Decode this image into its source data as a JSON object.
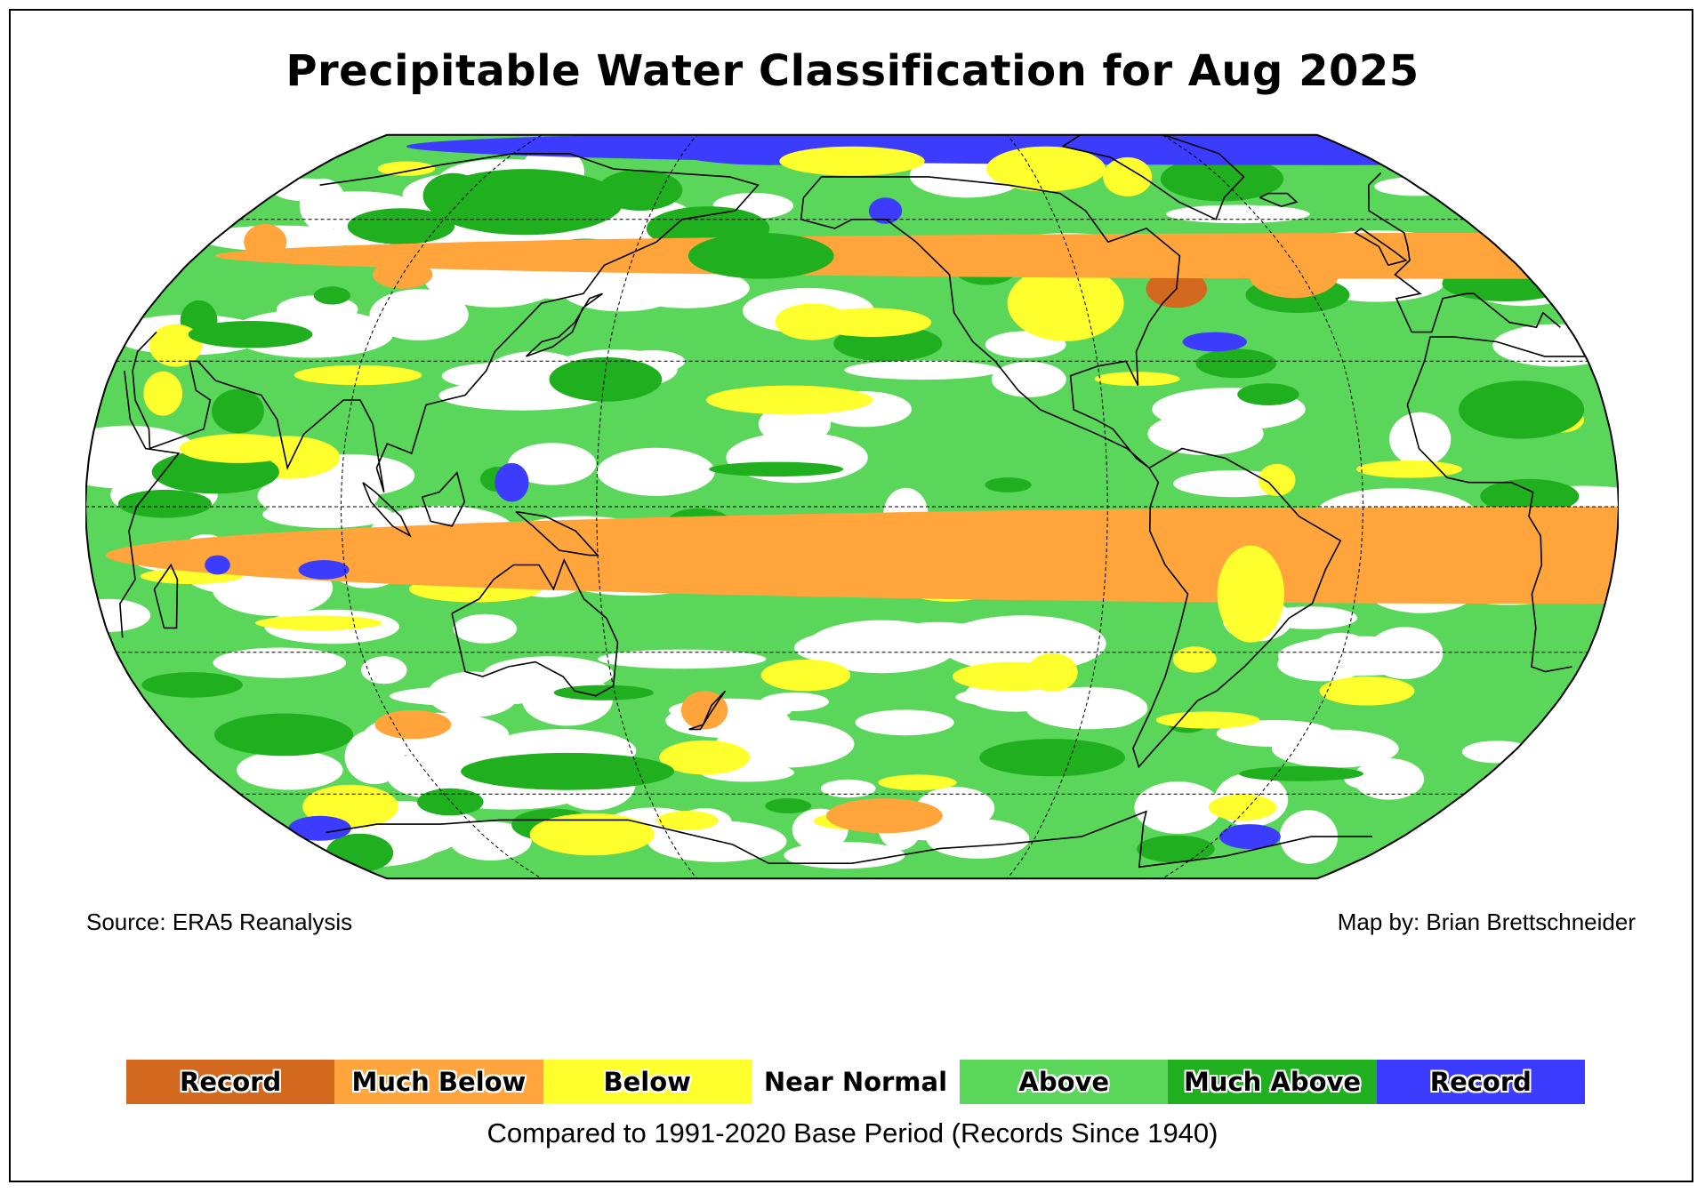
{
  "title": "Precipitable Water Classification for Aug 2025",
  "source_label": "Source: ERA5 Reanalysis",
  "credit_label": "Map by: Brian Brettschneider",
  "base_period_label": "Compared to 1991-2020 Base Period   (Records Since 1940)",
  "colors": {
    "record_low": "#d2691e",
    "much_below": "#ffa53b",
    "below": "#ffff2e",
    "near_normal": "#ffffff",
    "above": "#5ad65a",
    "much_above": "#1faf1f",
    "record_high": "#3c3cff",
    "land_outline": "#000000"
  },
  "legend": [
    {
      "label": "Record",
      "color": "#d2691e"
    },
    {
      "label": "Much Below",
      "color": "#ffa53b"
    },
    {
      "label": "Below",
      "color": "#ffff2e"
    },
    {
      "label": "Near Normal",
      "color": "#ffffff"
    },
    {
      "label": "Above",
      "color": "#5ad65a"
    },
    {
      "label": "Much Above",
      "color": "#1faf1f"
    },
    {
      "label": "Record",
      "color": "#3c3cff"
    }
  ],
  "map": {
    "projection": "Robinson",
    "central_longitude": -150,
    "graticule_latitudes": [
      -60,
      -30,
      0,
      30,
      60
    ],
    "graticule_longitudes": [
      -90,
      -30,
      30,
      90,
      150
    ],
    "regions": [
      {
        "name": "arctic-record-high-asia",
        "lon": -180,
        "lat": 78,
        "rx": 40,
        "ry": 6,
        "class": "record_high"
      },
      {
        "name": "arctic-record-high-atlantic",
        "lon": 25,
        "lat": 78,
        "rx": 22,
        "ry": 6,
        "class": "record_high"
      },
      {
        "name": "north-pacific-below",
        "lon": -150,
        "lat": 74,
        "rx": 25,
        "ry": 4,
        "class": "below"
      },
      {
        "name": "canadian-arctic-below",
        "lon": -85,
        "lat": 72,
        "rx": 20,
        "ry": 6,
        "class": "below"
      },
      {
        "name": "greenland-arctic-below",
        "lon": -60,
        "lat": 70,
        "rx": 8,
        "ry": 5,
        "class": "below"
      },
      {
        "name": "siberia-much-above",
        "lon": 110,
        "lat": 64,
        "rx": 30,
        "ry": 8,
        "class": "much_above"
      },
      {
        "name": "alaska-record-high",
        "lon": -140,
        "lat": 62,
        "rx": 5,
        "ry": 3,
        "class": "record_high"
      },
      {
        "name": "us-northeast-record-low",
        "lon": -65,
        "lat": 45,
        "rx": 8,
        "ry": 4,
        "class": "record_low"
      },
      {
        "name": "us-plains-below",
        "lon": -95,
        "lat": 42,
        "rx": 15,
        "ry": 8,
        "class": "below"
      },
      {
        "name": "north-atlantic-much-below",
        "lon": -32,
        "lat": 48,
        "rx": 12,
        "ry": 5,
        "class": "much_below"
      },
      {
        "name": "us-east-coast-record-high",
        "lon": -60,
        "lat": 34,
        "rx": 8,
        "ry": 2,
        "class": "record_high"
      },
      {
        "name": "europe-much-below",
        "lon": 20,
        "lat": 52,
        "rx": 15,
        "ry": 5,
        "class": "much_below"
      },
      {
        "name": "mongolia-much-below",
        "lon": 90,
        "lat": 48,
        "rx": 8,
        "ry": 3,
        "class": "much_below"
      },
      {
        "name": "west-siberia-much-below",
        "lon": 45,
        "lat": 55,
        "rx": 6,
        "ry": 4,
        "class": "much_below"
      },
      {
        "name": "north-pacific-east-below",
        "lon": -145,
        "lat": 38,
        "rx": 15,
        "ry": 3,
        "class": "below"
      },
      {
        "name": "central-pacific-below",
        "lon": -165,
        "lat": 22,
        "rx": 20,
        "ry": 3,
        "class": "below"
      },
      {
        "name": "west-pacific-record-high",
        "lon": 130,
        "lat": 5,
        "rx": 4,
        "ry": 4,
        "class": "record_high"
      },
      {
        "name": "arabian-sea-below",
        "lon": 65,
        "lat": 12,
        "rx": 14,
        "ry": 3,
        "class": "below"
      },
      {
        "name": "south-atlantic-much-below",
        "lon": -10,
        "lat": -6,
        "rx": 16,
        "ry": 5,
        "class": "much_below"
      },
      {
        "name": "southern-africa-much-below",
        "lon": 22,
        "lat": -10,
        "rx": 12,
        "ry": 10,
        "class": "much_below"
      },
      {
        "name": "equatorial-pacific-much-below",
        "lon": -175,
        "lat": -5,
        "rx": 16,
        "ry": 3,
        "class": "much_below"
      },
      {
        "name": "indian-ocean-record-high-west",
        "lon": 60,
        "lat": -12,
        "rx": 3,
        "ry": 2,
        "class": "record_high"
      },
      {
        "name": "indian-ocean-record-high-east",
        "lon": 85,
        "lat": -13,
        "rx": 6,
        "ry": 2,
        "class": "record_high"
      },
      {
        "name": "south-america-below",
        "lon": -55,
        "lat": -18,
        "rx": 8,
        "ry": 10,
        "class": "below"
      },
      {
        "name": "peru-much-below",
        "lon": -75,
        "lat": -14,
        "rx": 5,
        "ry": 3,
        "class": "much_below"
      },
      {
        "name": "tasman-sea-much-below",
        "lon": 172,
        "lat": -42,
        "rx": 6,
        "ry": 4,
        "class": "much_below"
      },
      {
        "name": "south-indian-ocean-much-below",
        "lon": 95,
        "lat": -45,
        "rx": 10,
        "ry": 3,
        "class": "much_below"
      },
      {
        "name": "south-pacific-much-below",
        "lon": -140,
        "lat": -65,
        "rx": 18,
        "ry": 4,
        "class": "much_below"
      },
      {
        "name": "antarctic-record-high-west",
        "lon": 40,
        "lat": -68,
        "rx": 10,
        "ry": 3,
        "class": "record_high"
      },
      {
        "name": "antarctic-record-high-east",
        "lon": -20,
        "lat": -70,
        "rx": 10,
        "ry": 3,
        "class": "record_high"
      },
      {
        "name": "south-atlantic-below",
        "lon": -20,
        "lat": -38,
        "rx": 12,
        "ry": 3,
        "class": "below"
      },
      {
        "name": "south-pacific-below",
        "lon": -110,
        "lat": -35,
        "rx": 15,
        "ry": 3,
        "class": "below"
      },
      {
        "name": "tropical-atlantic-much-above",
        "lon": 10,
        "lat": 20,
        "rx": 15,
        "ry": 6,
        "class": "much_above"
      },
      {
        "name": "southern-ocean-much-above",
        "lon": 130,
        "lat": -55,
        "rx": 30,
        "ry": 4,
        "class": "much_above"
      },
      {
        "name": "south-pacific-much-above",
        "lon": -95,
        "lat": -52,
        "rx": 20,
        "ry": 4,
        "class": "much_above"
      },
      {
        "name": "north-pacific-much-above",
        "lon": -175,
        "lat": 52,
        "rx": 20,
        "ry": 5,
        "class": "much_above"
      }
    ]
  }
}
